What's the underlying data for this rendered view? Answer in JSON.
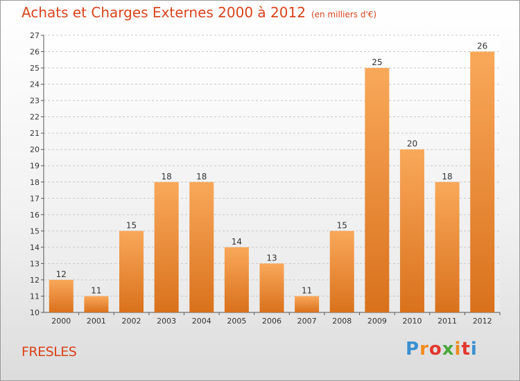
{
  "title": "Achats et Charges Externes 2000 à 2012",
  "subtitle": "(en milliers d'€)",
  "location": "FRESLES",
  "logo": {
    "letters": [
      "P",
      "r",
      "o",
      "x",
      "i",
      "t",
      "i"
    ],
    "colors": [
      "#3a8fd0",
      "#f08a1c",
      "#e2372c",
      "#4aa83a",
      "#f08a1c",
      "#e2372c",
      "#3a8fd0"
    ]
  },
  "colors": {
    "bar_light": "#f9a85a",
    "bar_dark": "#d9711c",
    "title": "#d9431b"
  },
  "chart_data": {
    "type": "bar",
    "categories": [
      "2000",
      "2001",
      "2002",
      "2003",
      "2004",
      "2005",
      "2006",
      "2007",
      "2008",
      "2009",
      "2010",
      "2011",
      "2012"
    ],
    "values": [
      12,
      11,
      15,
      18,
      18,
      14,
      13,
      11,
      15,
      25,
      20,
      18,
      26
    ],
    "ylim": [
      10,
      27
    ],
    "yticks": [
      10,
      11,
      12,
      13,
      14,
      15,
      16,
      17,
      18,
      19,
      20,
      21,
      22,
      23,
      24,
      25,
      26,
      27
    ],
    "grid": true
  }
}
